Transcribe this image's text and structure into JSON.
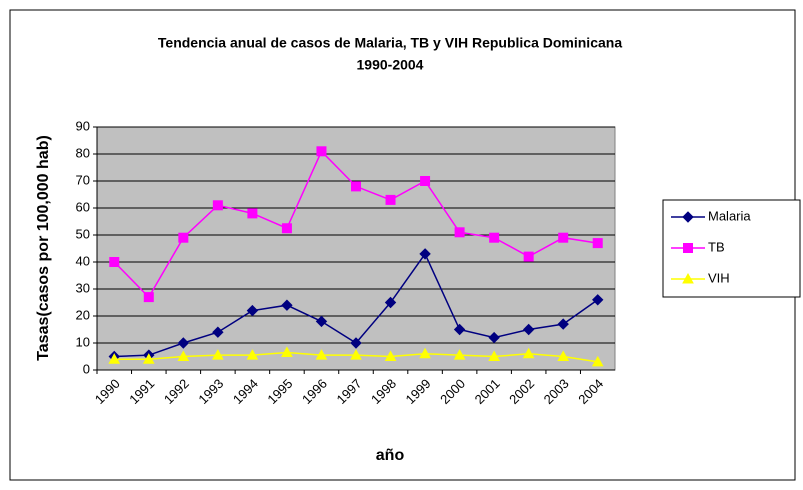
{
  "chart_data": {
    "type": "line",
    "title": [
      "Tendencia anual de casos de Malaria, TB y VIH Republica Dominicana",
      "1990-2004"
    ],
    "x_label": "año",
    "y_label": "Tasas(casos por 100,000 hab)",
    "categories": [
      "1990",
      "1991",
      "1992",
      "1993",
      "1994",
      "1995",
      "1996",
      "1997",
      "1998",
      "1999",
      "2000",
      "2001",
      "2002",
      "2003",
      "2004"
    ],
    "series": [
      {
        "name": "Malaria",
        "color": "#000080",
        "marker": "diamond",
        "values": [
          5,
          5.5,
          10,
          14,
          22,
          24,
          18,
          10,
          25,
          43,
          15,
          12,
          15,
          17,
          26
        ]
      },
      {
        "name": "TB",
        "color": "#ff00ff",
        "marker": "square",
        "values": [
          40,
          27,
          49,
          61,
          58,
          52.5,
          81,
          68,
          63,
          70,
          51,
          49,
          42,
          49,
          47
        ]
      },
      {
        "name": "VIH",
        "color": "#ffff00",
        "marker": "triangle",
        "values": [
          4,
          4,
          5,
          5.5,
          5.5,
          6.5,
          5.5,
          5.5,
          5,
          6,
          5.5,
          5,
          6,
          5,
          3
        ]
      }
    ],
    "ylim": [
      0,
      90
    ],
    "yticks": [
      0,
      10,
      20,
      30,
      40,
      50,
      60,
      70,
      80,
      90
    ],
    "grid": true,
    "legend": "right",
    "plot_background": "#c0c0c0"
  }
}
